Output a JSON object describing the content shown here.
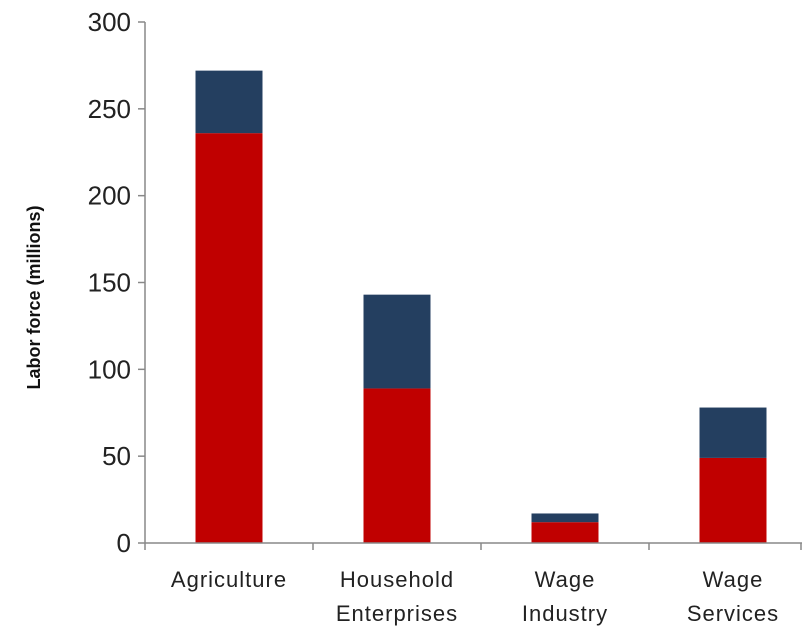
{
  "chart_data": {
    "type": "bar",
    "stacked": true,
    "title": "",
    "xlabel": "",
    "ylabel": "Labor force (millions)",
    "ylim": [
      0,
      300
    ],
    "yticks": [
      0,
      50,
      100,
      150,
      200,
      250,
      300
    ],
    "grid": false,
    "legend": "none",
    "categories": [
      [
        "Agriculture"
      ],
      [
        "Household",
        "Enterprises"
      ],
      [
        "Wage",
        "Industry"
      ],
      [
        "Wage",
        "Services"
      ]
    ],
    "series": [
      {
        "color": "#c00000",
        "values": [
          236,
          89,
          12,
          49
        ]
      },
      {
        "color": "#243f60",
        "values": [
          36,
          54,
          5,
          29
        ]
      }
    ]
  }
}
